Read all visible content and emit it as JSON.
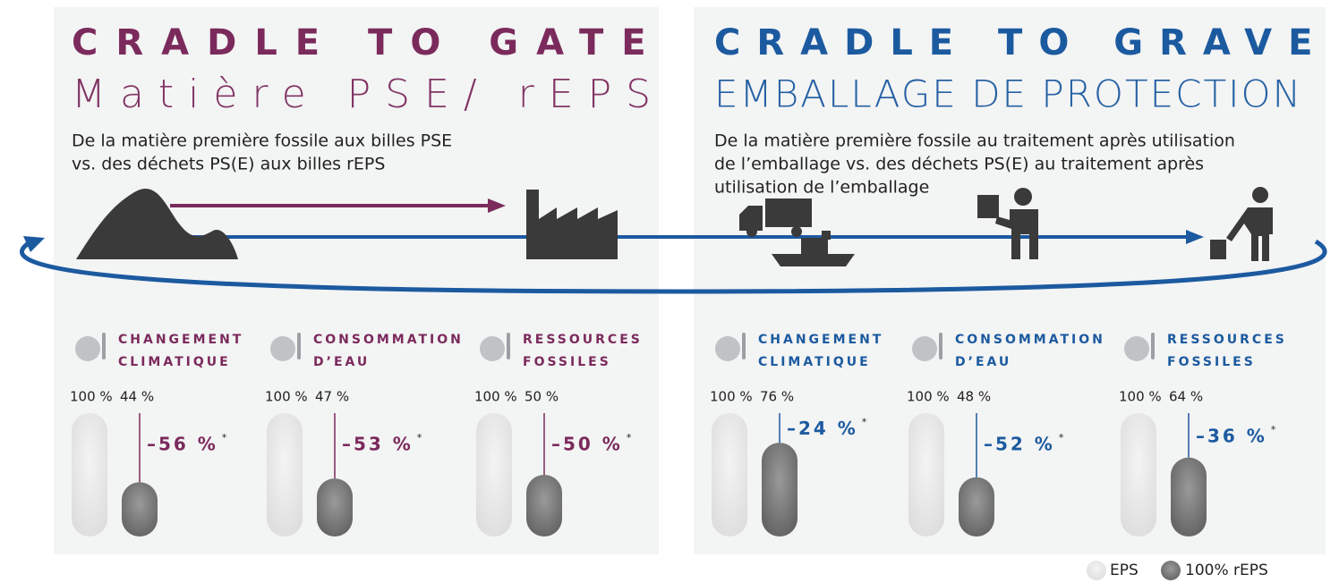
{
  "panels": [
    {
      "title": "CRADLE TO GATE",
      "subtitle": "Matière PSE/ rEPS",
      "color": "#7b2a5c",
      "description": [
        "De la matière première fossile aux billes PSE",
        "vs. des déchets PS(E) aux billes rEPS"
      ],
      "metrics": [
        {
          "label": [
            "CHANGEMENT",
            "CLIMATIQUE"
          ],
          "values": [
            100,
            44
          ],
          "value_labels": [
            "100 %",
            "44 %"
          ],
          "change": -56,
          "change_label": "–56 %",
          "note": "*"
        },
        {
          "label": [
            "CONSOMMATION",
            "D’EAU"
          ],
          "values": [
            100,
            47
          ],
          "value_labels": [
            "100 %",
            "47 %"
          ],
          "change": -53,
          "change_label": "–53 %",
          "note": "*"
        },
        {
          "label": [
            "RESSOURCES",
            "FOSSILES"
          ],
          "values": [
            100,
            50
          ],
          "value_labels": [
            "100 %",
            "50 %"
          ],
          "change": -50,
          "change_label": "–50 %",
          "note": "*"
        }
      ]
    },
    {
      "title": "CRADLE TO GRAVE",
      "subtitle": "EMBALLAGE DE PROTECTION",
      "color": "#1c5aa0",
      "description": [
        "De la matière première fossile au traitement après utilisation",
        "de l’emballage vs. des déchets PS(E) au traitement après",
        "utilisation de l’emballage"
      ],
      "metrics": [
        {
          "label": [
            "CHANGEMENT",
            "CLIMATIQUE"
          ],
          "values": [
            100,
            76
          ],
          "value_labels": [
            "100 %",
            "76 %"
          ],
          "change": -24,
          "change_label": "–24 %",
          "note": "*"
        },
        {
          "label": [
            "CONSOMMATION",
            "D’EAU"
          ],
          "values": [
            100,
            48
          ],
          "value_labels": [
            "100 %",
            "48 %"
          ],
          "change": -52,
          "change_label": "–52 %",
          "note": "*"
        },
        {
          "label": [
            "RESSOURCES",
            "FOSSILES"
          ],
          "values": [
            100,
            64
          ],
          "value_labels": [
            "100 %",
            "64 %"
          ],
          "change": -36,
          "change_label": "–36 %",
          "note": "*"
        }
      ]
    }
  ],
  "legend": [
    "EPS",
    "100% rEPS"
  ]
}
